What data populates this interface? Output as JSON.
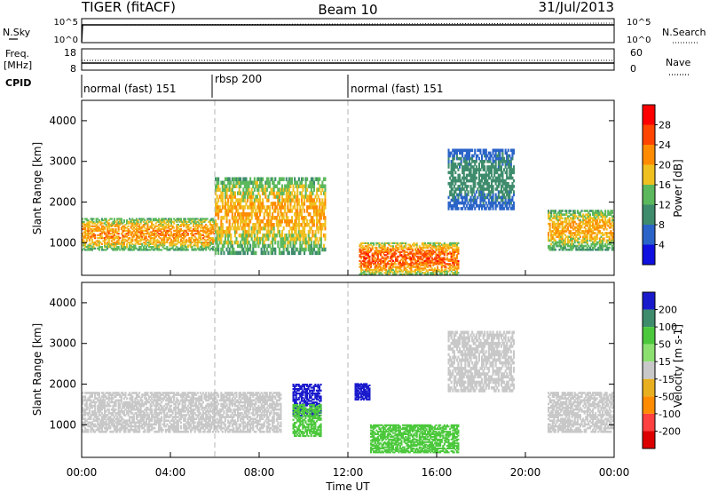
{
  "header": {
    "radar_title": "TIGER (fitACF)",
    "beam": "Beam 10",
    "date": "31/Jul/2013"
  },
  "strip_panels": {
    "nsky": {
      "left_label": "N.Sky",
      "right_label": "N.Search",
      "left_ticks": [
        "10^5",
        "10^0"
      ],
      "right_ticks": [
        "10^5",
        "10^0"
      ]
    },
    "freq": {
      "left_label_1": "Freq.",
      "left_label_2": "[MHz]",
      "right_label": "Nave",
      "left_ticks": [
        "18",
        "8"
      ],
      "right_ticks": [
        "60",
        "0"
      ]
    },
    "cpid": {
      "label": "CPID",
      "segments": [
        {
          "label": "normal (fast) 151",
          "start_hour": 0
        },
        {
          "label": "rbsp 200",
          "start_hour": 6
        },
        {
          "label": "normal (fast) 151",
          "start_hour": 12
        }
      ]
    }
  },
  "colors": {
    "power": [
      "#1010e0",
      "#2a64c8",
      "#3e8c6c",
      "#5cb85c",
      "#f0c020",
      "#ff8c00",
      "#ff4500",
      "#ff0000"
    ],
    "velocity": [
      "#1a1acd",
      "#3e8c6c",
      "#4cc83c",
      "#8ce070",
      "#c8c8c8",
      "#e8b020",
      "#ff8c00",
      "#ff4040",
      "#dd0000"
    ],
    "ground_scatter": "#c0c0c0",
    "dashed_marker": "#b4b4b4"
  },
  "chart_data": [
    {
      "type": "heatmap",
      "panel": "power",
      "xlabel": "",
      "ylabel": "Slant Range [km]",
      "yticks": [
        "1000",
        "2000",
        "3000",
        "4000"
      ],
      "ylim": [
        200,
        4500
      ],
      "xlim": [
        0,
        24
      ],
      "colorbar": {
        "label": "Power [dB]",
        "ticks": [
          "4",
          "8",
          "12",
          "16",
          "20",
          "24",
          "28"
        ],
        "range": [
          0,
          32
        ]
      },
      "scatter_regions": [
        {
          "t_start": 0.0,
          "t_end": 6.0,
          "range_start": 800,
          "range_end": 1600,
          "peak_db": 26
        },
        {
          "t_start": 6.0,
          "t_end": 11.0,
          "range_start": 700,
          "range_end": 2600,
          "peak_db": 24
        },
        {
          "t_start": 12.5,
          "t_end": 17.0,
          "range_start": 200,
          "range_end": 1000,
          "peak_db": 30
        },
        {
          "t_start": 16.5,
          "t_end": 19.5,
          "range_start": 1800,
          "range_end": 3300,
          "peak_db": 12
        },
        {
          "t_start": 21.0,
          "t_end": 24.0,
          "range_start": 800,
          "range_end": 1800,
          "peak_db": 24
        }
      ]
    },
    {
      "type": "heatmap",
      "panel": "velocity",
      "xlabel": "Time UT",
      "ylabel": "Slant Range [km]",
      "yticks": [
        "1000",
        "2000",
        "3000",
        "4000"
      ],
      "ylim": [
        200,
        4500
      ],
      "xlim": [
        0,
        24
      ],
      "xticks": [
        "00:00",
        "04:00",
        "08:00",
        "12:00",
        "16:00",
        "20:00",
        "00:00"
      ],
      "colorbar": {
        "label": "Velocity [m s-1]",
        "ticks": [
          "200",
          "100",
          "50",
          "15",
          "-15",
          "-50",
          "-100",
          "-200"
        ],
        "range": [
          -250,
          250
        ]
      },
      "scatter_regions": [
        {
          "t_start": 0.0,
          "t_end": 9.0,
          "range_start": 800,
          "range_end": 1800,
          "velocity": 0
        },
        {
          "t_start": 9.5,
          "t_end": 10.8,
          "range_start": 1200,
          "range_end": 2000,
          "velocity": 200
        },
        {
          "t_start": 9.5,
          "t_end": 10.8,
          "range_start": 700,
          "range_end": 1500,
          "velocity": 50
        },
        {
          "t_start": 12.3,
          "t_end": 13.0,
          "range_start": 1600,
          "range_end": 2000,
          "velocity": 200
        },
        {
          "t_start": 13.0,
          "t_end": 17.0,
          "range_start": 300,
          "range_end": 1000,
          "velocity": 50
        },
        {
          "t_start": 16.5,
          "t_end": 19.5,
          "range_start": 1800,
          "range_end": 3300,
          "velocity": 0
        },
        {
          "t_start": 21.0,
          "t_end": 24.0,
          "range_start": 800,
          "range_end": 1800,
          "velocity": 0
        }
      ]
    }
  ],
  "markers": {
    "vertical_dashed_hours": [
      6,
      12
    ]
  }
}
